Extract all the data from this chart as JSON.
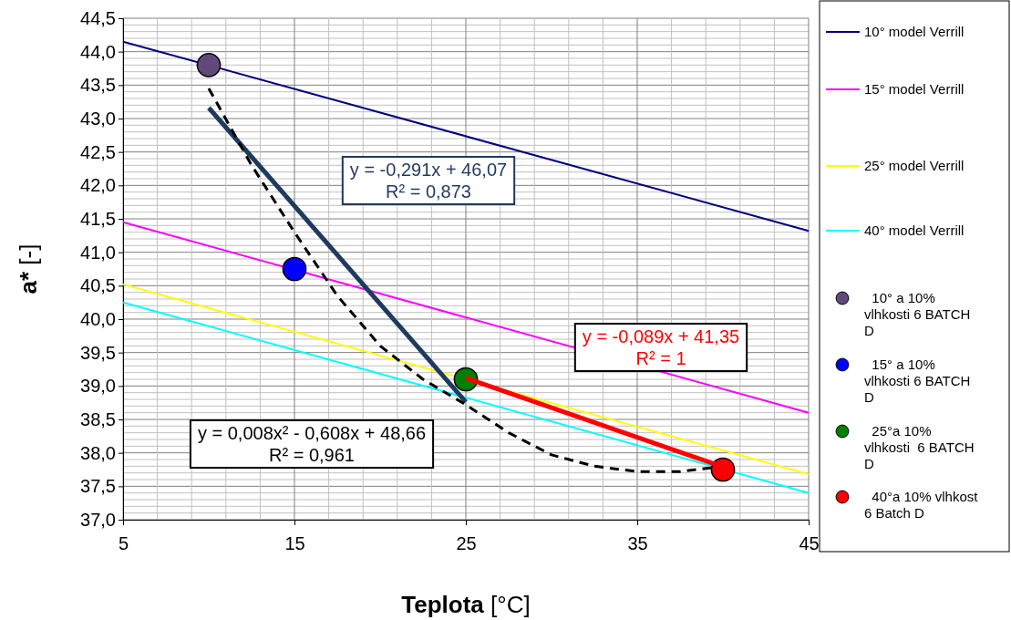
{
  "chart_data": {
    "type": "line",
    "xlabel": "Teplota [°C]",
    "ylabel": "a* [-]",
    "xlim": [
      5,
      45
    ],
    "xticks": [
      5,
      15,
      25,
      35,
      45
    ],
    "ylim": [
      37,
      44.5
    ],
    "yticks": [
      {
        "value": 37,
        "label": "37,0"
      },
      {
        "value": 37.5,
        "label": "37,5"
      },
      {
        "value": 38,
        "label": "38,0"
      },
      {
        "value": 38.5,
        "label": "38,5"
      },
      {
        "value": 39,
        "label": "39,0"
      },
      {
        "value": 39.5,
        "label": "39,5"
      },
      {
        "value": 40,
        "label": "40,0"
      },
      {
        "value": 40.5,
        "label": "40,5"
      },
      {
        "value": 41,
        "label": "41,0"
      },
      {
        "value": 41.5,
        "label": "41,5"
      },
      {
        "value": 42,
        "label": "42,0"
      },
      {
        "value": 42.5,
        "label": "42,5"
      },
      {
        "value": 43,
        "label": "43,0"
      },
      {
        "value": 43.5,
        "label": "43,5"
      },
      {
        "value": 44,
        "label": "44,0"
      },
      {
        "value": 44.5,
        "label": "44,5"
      }
    ],
    "grid": true,
    "legend": "right",
    "series": [
      {
        "name": "10° model Verrill",
        "type": "line",
        "color": "#000080",
        "x": [
          5,
          45
        ],
        "values": [
          44.15,
          41.32
        ]
      },
      {
        "name": "15° model Verrill",
        "type": "line",
        "color": "#ff00ff",
        "x": [
          5,
          45
        ],
        "values": [
          41.45,
          38.6
        ]
      },
      {
        "name": "25° model Verrill",
        "type": "line",
        "color": "#ffff00",
        "x": [
          5,
          45
        ],
        "values": [
          40.52,
          37.68
        ]
      },
      {
        "name": "40° model Verrill",
        "type": "line",
        "color": "#00ffff",
        "x": [
          5,
          45
        ],
        "values": [
          40.25,
          37.4
        ]
      },
      {
        "color": "#1f3a5f",
        "x": [
          10,
          25
        ],
        "values": [
          43.16,
          38.76
        ]
      },
      {
        "color": "#000000",
        "line_style": "dashed",
        "x": [
          10,
          12.5,
          15,
          17.5,
          20,
          22.5,
          25,
          27.5,
          30,
          32.5,
          35,
          37.5,
          40
        ],
        "values": [
          43.45,
          42.3,
          41.3,
          40.35,
          39.6,
          39.1,
          38.72,
          38.3,
          37.97,
          37.8,
          37.72,
          37.72,
          37.8
        ]
      },
      {
        "color": "#ff0000",
        "x": [
          25,
          40
        ],
        "values": [
          39.12,
          37.79
        ]
      },
      {
        "name": "  10° a 10% vlhkosti 6 BATCH D",
        "type": "scatter",
        "marker": "circle",
        "color": "#604a7b",
        "x": [
          10
        ],
        "values": [
          43.8
        ]
      },
      {
        "name": "  15° a 10% vlhkosti 6 BATCH D",
        "type": "scatter",
        "marker": "circle",
        "color": "#0000ff",
        "x": [
          15
        ],
        "values": [
          40.75
        ]
      },
      {
        "name": "  25°a 10% vlhkosti  6 BATCH D",
        "type": "scatter",
        "marker": "circle",
        "color": "#008000",
        "x": [
          25
        ],
        "values": [
          39.1
        ]
      },
      {
        "name": "  40°a 10% vlhkost 6 Batch D",
        "type": "scatter",
        "marker": "circle",
        "color": "#ff0000",
        "x": [
          40
        ],
        "values": [
          37.75
        ]
      }
    ],
    "annotations": [
      "y = -0,291x + 46,07\nR² = 0,873",
      "y = -0,089x + 41,35\nR² = 1",
      "y = 0,008x² - 0,608x + 48,66\nR² = 0,961"
    ]
  }
}
